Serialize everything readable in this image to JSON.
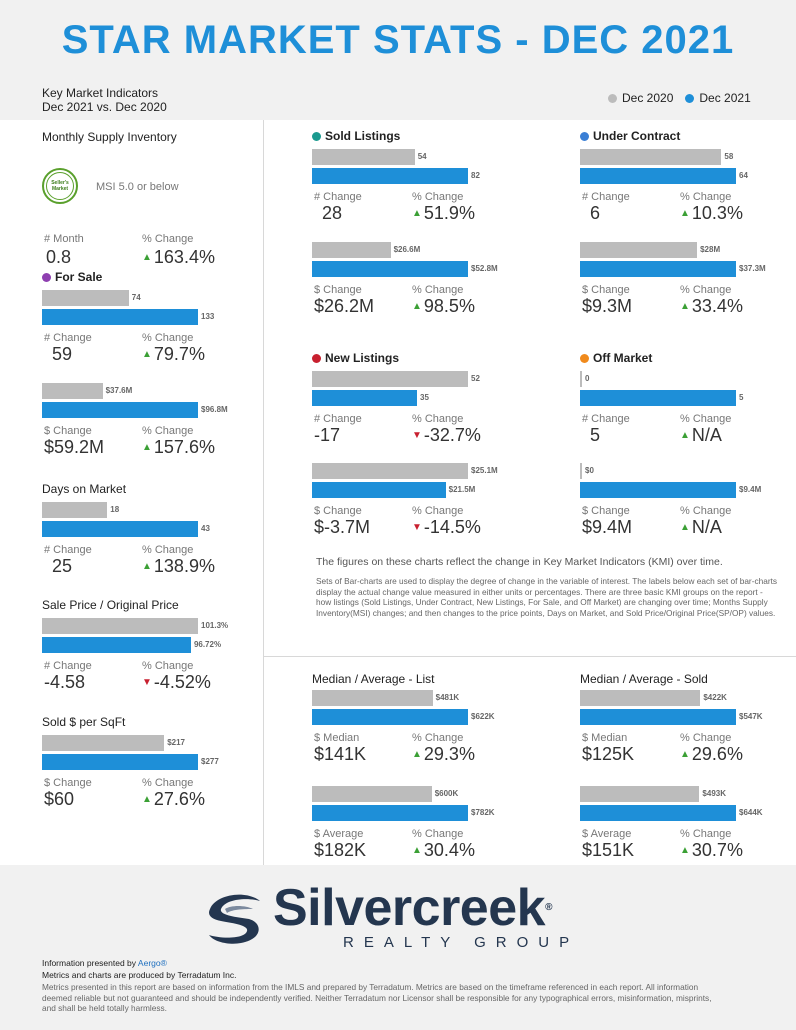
{
  "title": "STAR MARKET STATS - DEC 2021",
  "kmi": {
    "line1": "Key Market Indicators",
    "line2": "Dec 2021 vs. Dec 2020"
  },
  "legend": [
    {
      "label": "Dec 2020",
      "color": "#bcbcbc"
    },
    {
      "label": "Dec 2021",
      "color": "#1e8fd8"
    }
  ],
  "colors": {
    "gray": "#bcbcbc",
    "blue": "#1e8fd8",
    "up": "#3ba035",
    "down": "#c8202f"
  },
  "msi": {
    "title": "Monthly Supply Inventory",
    "badge": "Seller's Market",
    "note": "MSI 5.0 or below",
    "change_label": "# Month",
    "change_value": "0.8",
    "pct_label": "% Change",
    "pct_value": "163.4%",
    "pct_dir": "up"
  },
  "chart_data": [
    {
      "type": "bar",
      "id": "for_sale_count",
      "title": "For Sale",
      "title_dot": "#8e3fb0",
      "values": [
        74,
        133
      ],
      "labels": [
        "74",
        "133"
      ],
      "change_label": "# Change",
      "change": "59",
      "pct_label": "% Change",
      "pct": "79.7%",
      "dir": "up"
    },
    {
      "type": "bar",
      "id": "for_sale_volume",
      "values": [
        37.6,
        96.8
      ],
      "labels": [
        "$37.6M",
        "$96.8M"
      ],
      "change_label": "$ Change",
      "change": "$59.2M",
      "pct_label": "% Change",
      "pct": "157.6%",
      "dir": "up"
    },
    {
      "type": "bar",
      "id": "days_on_market",
      "title": "Days on Market",
      "values": [
        18,
        43
      ],
      "labels": [
        "18",
        "43"
      ],
      "change_label": "# Change",
      "change": "25",
      "pct_label": "% Change",
      "pct": "138.9%",
      "dir": "up"
    },
    {
      "type": "bar",
      "id": "sale_price_ratio",
      "title": "Sale Price / Original Price",
      "values": [
        101.3,
        96.72
      ],
      "labels": [
        "101.3%",
        "96.72%"
      ],
      "change_label": "# Change",
      "change": "-4.58",
      "pct_label": "% Change",
      "pct": "-4.52%",
      "dir": "down"
    },
    {
      "type": "bar",
      "id": "sold_per_sqft",
      "title": "Sold $ per SqFt",
      "values": [
        217,
        277
      ],
      "labels": [
        "$217",
        "$277"
      ],
      "change_label": "$ Change",
      "change": "$60",
      "pct_label": "% Change",
      "pct": "27.6%",
      "dir": "up"
    },
    {
      "type": "bar",
      "id": "sold_count",
      "title": "Sold Listings",
      "title_dot": "#1a9a8f",
      "values": [
        54,
        82
      ],
      "labels": [
        "54",
        "82"
      ],
      "change_label": "# Change",
      "change": "28",
      "pct_label": "% Change",
      "pct": "51.9%",
      "dir": "up"
    },
    {
      "type": "bar",
      "id": "sold_volume",
      "values": [
        26.6,
        52.8
      ],
      "labels": [
        "$26.6M",
        "$52.8M"
      ],
      "change_label": "$ Change",
      "change": "$26.2M",
      "pct_label": "% Change",
      "pct": "98.5%",
      "dir": "up"
    },
    {
      "type": "bar",
      "id": "uc_count",
      "title": "Under Contract",
      "title_dot": "#3a7fd5",
      "values": [
        58,
        64
      ],
      "labels": [
        "58",
        "64"
      ],
      "change_label": "# Change",
      "change": "6",
      "pct_label": "% Change",
      "pct": "10.3%",
      "dir": "up"
    },
    {
      "type": "bar",
      "id": "uc_volume",
      "values": [
        28,
        37.3
      ],
      "labels": [
        "$28M",
        "$37.3M"
      ],
      "change_label": "$ Change",
      "change": "$9.3M",
      "pct_label": "% Change",
      "pct": "33.4%",
      "dir": "up"
    },
    {
      "type": "bar",
      "id": "new_count",
      "title": "New Listings",
      "title_dot": "#c8202f",
      "values": [
        52,
        35
      ],
      "labels": [
        "52",
        "35"
      ],
      "change_label": "# Change",
      "change": "-17",
      "pct_label": "% Change",
      "pct": "-32.7%",
      "dir": "down"
    },
    {
      "type": "bar",
      "id": "new_volume",
      "values": [
        25.1,
        21.5
      ],
      "labels": [
        "$25.1M",
        "$21.5M"
      ],
      "change_label": "$ Change",
      "change": "$-3.7M",
      "pct_label": "% Change",
      "pct": "-14.5%",
      "dir": "down"
    },
    {
      "type": "bar",
      "id": "off_count",
      "title": "Off Market",
      "title_dot": "#f08a1c",
      "values": [
        0,
        5
      ],
      "labels": [
        "0",
        "5"
      ],
      "change_label": "# Change",
      "change": "5",
      "pct_label": "% Change",
      "pct": "N/A",
      "dir": "up"
    },
    {
      "type": "bar",
      "id": "off_volume",
      "values": [
        0,
        9.4
      ],
      "labels": [
        "$0",
        "$9.4M"
      ],
      "change_label": "$ Change",
      "change": "$9.4M",
      "pct_label": "% Change",
      "pct": "N/A",
      "dir": "up"
    },
    {
      "type": "bar",
      "id": "list_median",
      "title": "Median / Average - List",
      "values": [
        481,
        622
      ],
      "labels": [
        "$481K",
        "$622K"
      ],
      "change_label": "$ Median",
      "change": "$141K",
      "pct_label": "% Change",
      "pct": "29.3%",
      "dir": "up"
    },
    {
      "type": "bar",
      "id": "list_average",
      "values": [
        600,
        782
      ],
      "labels": [
        "$600K",
        "$782K"
      ],
      "change_label": "$ Average",
      "change": "$182K",
      "pct_label": "% Change",
      "pct": "30.4%",
      "dir": "up"
    },
    {
      "type": "bar",
      "id": "sold_median",
      "title": "Median / Average - Sold",
      "values": [
        422,
        547
      ],
      "labels": [
        "$422K",
        "$547K"
      ],
      "change_label": "$ Median",
      "change": "$125K",
      "pct_label": "% Change",
      "pct": "29.6%",
      "dir": "up"
    },
    {
      "type": "bar",
      "id": "sold_average",
      "values": [
        493,
        644
      ],
      "labels": [
        "$493K",
        "$644K"
      ],
      "change_label": "$ Average",
      "change": "$151K",
      "pct_label": "% Change",
      "pct": "30.7%",
      "dir": "up"
    }
  ],
  "explain": {
    "line1": "The figures on these charts reflect the change in Key Market Indicators (KMI) over time.",
    "line2": "Sets of Bar-charts are used to display the degree of change in the variable of interest. The labels below each set of bar-charts display the actual change value measured in either units or percentages. There are three basic KMI groups on the report - how listings (Sold Listings, Under Contract, New Listings, For Sale, and Off Market) are changing over time; Months Supply Inventory(MSI) changes; and then changes to the price points, Days on Market, and Sold Price/Original Price(SP/OP) values."
  },
  "logo": {
    "name": "Silvercreek",
    "reg": "®",
    "sub": "REALTY GROUP"
  },
  "footer": {
    "presented_prefix": "Information presented by ",
    "presented_link": "Aergo®",
    "produced": "Metrics and charts are produced by Terradatum Inc.",
    "disclaimer": "Metrics presented in this report are based on information from the IMLS and prepared by Terradatum. Metrics are based on the timeframe referenced in each report. All information deemed reliable but not guaranteed and should be independently verified. Neither Terradatum nor Licensor shall be responsible for any typographical errors, misinformation, misprints, and shall be held totally harmless."
  }
}
